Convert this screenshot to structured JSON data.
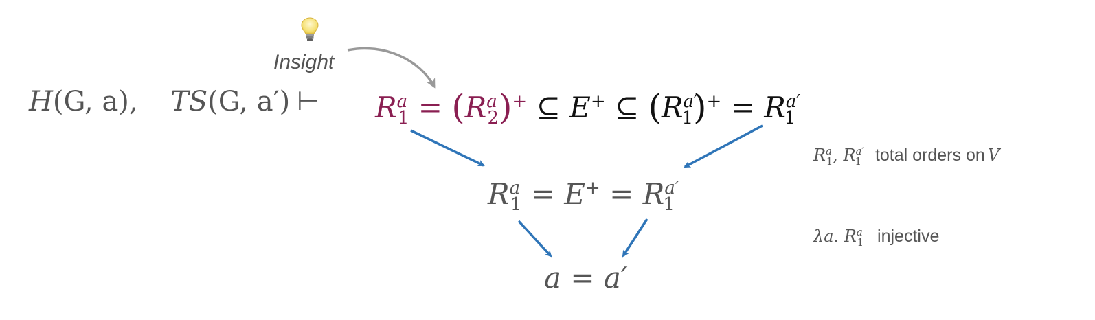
{
  "premises": {
    "h": "H",
    "h_args": "(G, a),",
    "ts": "TS",
    "ts_args": "(G, a′)",
    "turnstile": "⊢"
  },
  "insight": {
    "label": "Insight",
    "icon": "lightbulb-icon"
  },
  "top_chain": {
    "r": "R",
    "sub1": "1",
    "sub2": "2",
    "sup_a": "a",
    "sup_a_prime": "a′",
    "eq": "=",
    "subseteq": "⊆",
    "e": "E",
    "plus": "+",
    "lparen": "(",
    "rparen": ")"
  },
  "middle": {
    "r": "R",
    "sub1": "1",
    "sup_a": "a",
    "sup_a_prime": "a′",
    "eq": "=",
    "e": "E",
    "plus": "+"
  },
  "conclusion": "a = a′",
  "notes": [
    {
      "math_r": "R",
      "math_sub": "1",
      "math_sup_a": "a",
      "math_sup_ap": "a′",
      "comma": ",",
      "text": "total orders on",
      "var": "V"
    },
    {
      "lambda": "λa.",
      "math_r": "R",
      "math_sub": "1",
      "math_sup_a": "a",
      "text": "injective"
    }
  ],
  "colors": {
    "highlight": "#8a1f52",
    "arrow": "#2f75b8",
    "insight_arrow": "#999999",
    "text": "#555555"
  }
}
